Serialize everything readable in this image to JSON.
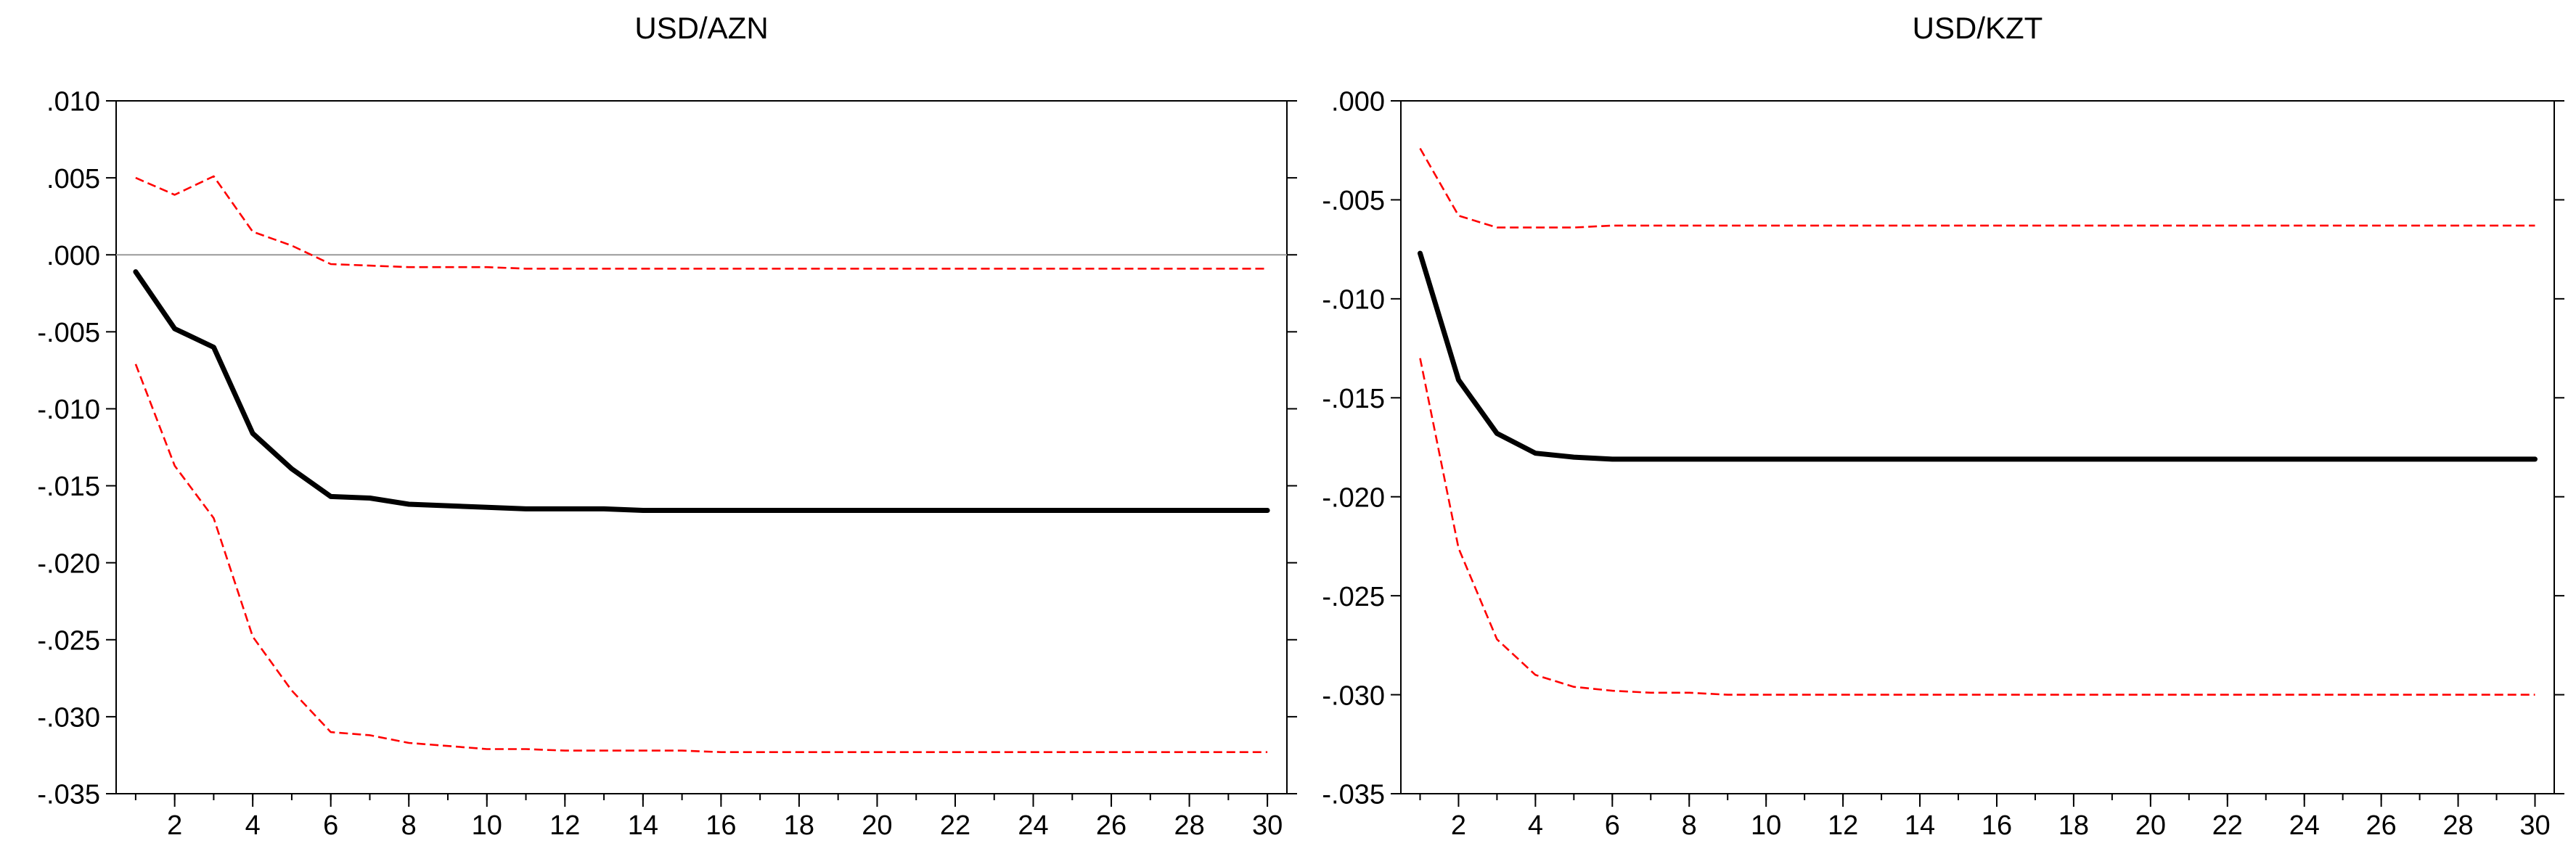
{
  "chart_data": [
    {
      "type": "line",
      "title": "USD/AZN",
      "xlabel": "",
      "ylabel": "",
      "x": [
        1,
        2,
        3,
        4,
        5,
        6,
        7,
        8,
        9,
        10,
        11,
        12,
        13,
        14,
        15,
        16,
        17,
        18,
        19,
        20,
        21,
        22,
        23,
        24,
        25,
        26,
        27,
        28,
        29,
        30
      ],
      "xticks": [
        2,
        4,
        6,
        8,
        10,
        12,
        14,
        16,
        18,
        20,
        22,
        24,
        26,
        28,
        30
      ],
      "xlim": [
        0.5,
        30.5
      ],
      "ylim": [
        -0.035,
        0.01
      ],
      "yticks": [
        0.01,
        0.005,
        0.0,
        -0.005,
        -0.01,
        -0.015,
        -0.02,
        -0.025,
        -0.03,
        -0.035
      ],
      "ytick_labels": [
        ".010",
        ".005",
        ".000",
        "-.005",
        "-.010",
        "-.015",
        "-.020",
        "-.025",
        "-.030",
        "-.035"
      ],
      "zero_line": true,
      "grid": false,
      "series": [
        {
          "role": "response",
          "color": "#000000",
          "style": "solid",
          "values": [
            -0.0011,
            -0.0048,
            -0.006,
            -0.0116,
            -0.0139,
            -0.0157,
            -0.0158,
            -0.0162,
            -0.0163,
            -0.0164,
            -0.0165,
            -0.0165,
            -0.0165,
            -0.0166,
            -0.0166,
            -0.0166,
            -0.0166,
            -0.0166,
            -0.0166,
            -0.0166,
            -0.0166,
            -0.0166,
            -0.0166,
            -0.0166,
            -0.0166,
            -0.0166,
            -0.0166,
            -0.0166,
            -0.0166,
            -0.0166
          ]
        },
        {
          "role": "upper-band",
          "color": "#ff0000",
          "style": "dashed",
          "values": [
            0.005,
            0.0039,
            0.0051,
            0.0015,
            0.0006,
            -0.0006,
            -0.0007,
            -0.0008,
            -0.0008,
            -0.0008,
            -0.0009,
            -0.0009,
            -0.0009,
            -0.0009,
            -0.0009,
            -0.0009,
            -0.0009,
            -0.0009,
            -0.0009,
            -0.0009,
            -0.0009,
            -0.0009,
            -0.0009,
            -0.0009,
            -0.0009,
            -0.0009,
            -0.0009,
            -0.0009,
            -0.0009,
            -0.0009
          ]
        },
        {
          "role": "lower-band",
          "color": "#ff0000",
          "style": "dashed",
          "values": [
            -0.0071,
            -0.0137,
            -0.0171,
            -0.0248,
            -0.0283,
            -0.031,
            -0.0312,
            -0.0317,
            -0.0319,
            -0.0321,
            -0.0321,
            -0.0322,
            -0.0322,
            -0.0322,
            -0.0322,
            -0.0323,
            -0.0323,
            -0.0323,
            -0.0323,
            -0.0323,
            -0.0323,
            -0.0323,
            -0.0323,
            -0.0323,
            -0.0323,
            -0.0323,
            -0.0323,
            -0.0323,
            -0.0323,
            -0.0323
          ]
        }
      ]
    },
    {
      "type": "line",
      "title": "USD/KZT",
      "xlabel": "",
      "ylabel": "",
      "x": [
        1,
        2,
        3,
        4,
        5,
        6,
        7,
        8,
        9,
        10,
        11,
        12,
        13,
        14,
        15,
        16,
        17,
        18,
        19,
        20,
        21,
        22,
        23,
        24,
        25,
        26,
        27,
        28,
        29,
        30
      ],
      "xticks": [
        2,
        4,
        6,
        8,
        10,
        12,
        14,
        16,
        18,
        20,
        22,
        24,
        26,
        28,
        30
      ],
      "xlim": [
        0.5,
        30.5
      ],
      "ylim": [
        -0.035,
        0.0
      ],
      "yticks": [
        0.0,
        -0.005,
        -0.01,
        -0.015,
        -0.02,
        -0.025,
        -0.03,
        -0.035
      ],
      "ytick_labels": [
        ".000",
        "-.005",
        "-.010",
        "-.015",
        "-.020",
        "-.025",
        "-.030",
        "-.035"
      ],
      "zero_line": false,
      "grid": false,
      "series": [
        {
          "role": "response",
          "color": "#000000",
          "style": "solid",
          "values": [
            -0.0077,
            -0.0141,
            -0.0168,
            -0.0178,
            -0.018,
            -0.0181,
            -0.0181,
            -0.0181,
            -0.0181,
            -0.0181,
            -0.0181,
            -0.0181,
            -0.0181,
            -0.0181,
            -0.0181,
            -0.0181,
            -0.0181,
            -0.0181,
            -0.0181,
            -0.0181,
            -0.0181,
            -0.0181,
            -0.0181,
            -0.0181,
            -0.0181,
            -0.0181,
            -0.0181,
            -0.0181,
            -0.0181,
            -0.0181
          ]
        },
        {
          "role": "upper-band",
          "color": "#ff0000",
          "style": "dashed",
          "values": [
            -0.0024,
            -0.0058,
            -0.0064,
            -0.0064,
            -0.0064,
            -0.0063,
            -0.0063,
            -0.0063,
            -0.0063,
            -0.0063,
            -0.0063,
            -0.0063,
            -0.0063,
            -0.0063,
            -0.0063,
            -0.0063,
            -0.0063,
            -0.0063,
            -0.0063,
            -0.0063,
            -0.0063,
            -0.0063,
            -0.0063,
            -0.0063,
            -0.0063,
            -0.0063,
            -0.0063,
            -0.0063,
            -0.0063,
            -0.0063
          ]
        },
        {
          "role": "lower-band",
          "color": "#ff0000",
          "style": "dashed",
          "values": [
            -0.013,
            -0.0226,
            -0.0272,
            -0.029,
            -0.0296,
            -0.0298,
            -0.0299,
            -0.0299,
            -0.03,
            -0.03,
            -0.03,
            -0.03,
            -0.03,
            -0.03,
            -0.03,
            -0.03,
            -0.03,
            -0.03,
            -0.03,
            -0.03,
            -0.03,
            -0.03,
            -0.03,
            -0.03,
            -0.03,
            -0.03,
            -0.03,
            -0.03,
            -0.03,
            -0.03
          ]
        }
      ]
    }
  ]
}
